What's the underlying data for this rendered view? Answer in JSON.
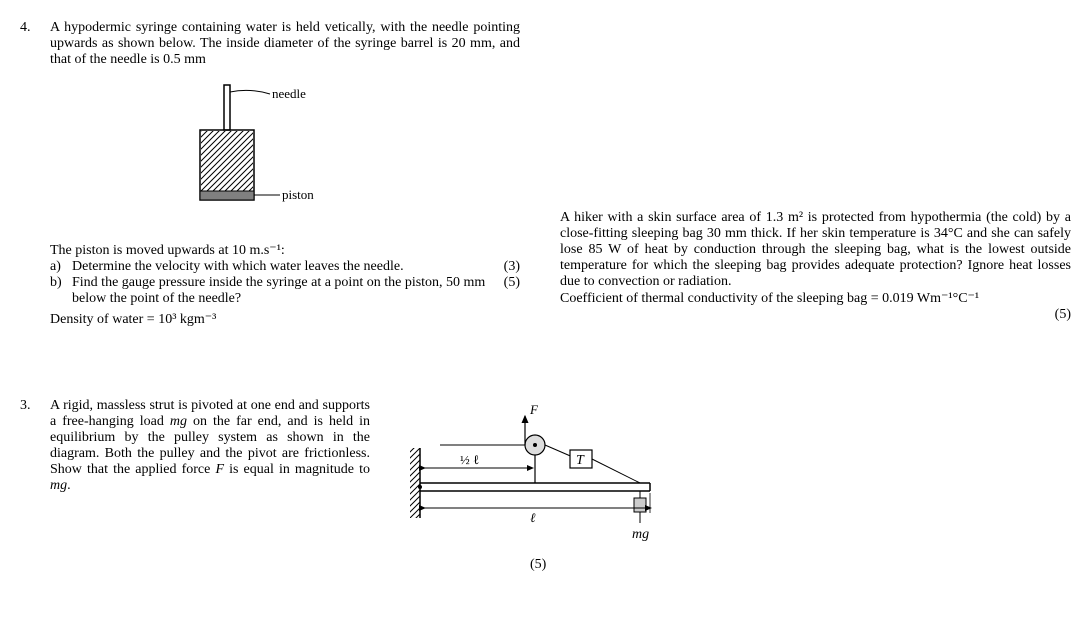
{
  "q4": {
    "number": "4.",
    "intro": "A hypodermic syringe containing water is held vetically, with the needle pointing upwards as shown below.  The inside diameter of the syringe barrel is 20 mm, and that of the needle is 0.5 mm",
    "needle_label": "needle",
    "piston_label": "piston",
    "piston_line": "The piston is moved upwards at 10 m.s⁻¹:",
    "a_label": "a)",
    "a_text": "Determine the velocity with which water leaves the needle.",
    "a_marks": "(3)",
    "b_label": "b)",
    "b_text": "Find the gauge pressure inside the syringe at a point on the piston, 50 mm below the point of the needle?",
    "b_marks": "(5)",
    "density": "Density of water = 10³ kgm⁻³"
  },
  "q_hiker": {
    "text": "A hiker with a skin surface area of 1.3 m² is protected from hypothermia (the cold) by a close-fitting sleeping bag 30 mm thick. If her skin temperature is 34°C and she can safely lose 85 W of heat by conduction through the sleeping bag, what is the lowest outside temperature for which the sleeping bag provides adequate protection?  Ignore heat losses due to convection or radiation.",
    "coeff": "Coefficient of thermal conductivity of the sleeping bag  = 0.019 Wm⁻¹°C⁻¹",
    "marks": "(5)"
  },
  "q3": {
    "number": "3.",
    "text_html": "A rigid, massless strut is pivoted at one end and supports a free-hanging load <i>mg</i> on the far end, and is held in equilibrium by the pulley system as shown in the diagram.  Both the pulley and the pivot are frictionless. Show that the applied force <i>F</i> is equal in magnitude to <i>mg</i>.",
    "marks": "(5)",
    "T_label": "T",
    "mg_label": "mg",
    "F_label": "F",
    "half_l": "½ ℓ",
    "l": "ℓ"
  },
  "colors": {
    "text": "#000000",
    "bg": "#ffffff",
    "hatch": "#000000"
  }
}
